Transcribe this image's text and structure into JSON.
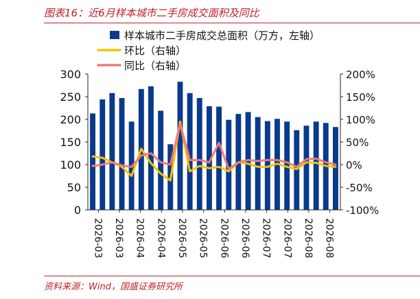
{
  "figure": {
    "title": "图表16：近6月样本城市二手房成交面积及同比",
    "source": "资料来源：Wind，国盛证券研究所"
  },
  "chart_data": {
    "type": "bar",
    "title": "",
    "xlabel": "",
    "ylabel": "",
    "legend": {
      "placement": "top-left",
      "entries": [
        {
          "label": "样本城市二手房成交总面积（万方，左轴）",
          "color": "#0a3a8c",
          "kind": "bar"
        },
        {
          "label": "环比（右轴）",
          "color": "#f5c400",
          "kind": "line"
        },
        {
          "label": "同比（右轴）",
          "color": "#ec7b7b",
          "kind": "line"
        }
      ]
    },
    "x_tick_labels": [
      "2026-03",
      "2026-03",
      "2026-04",
      "2026-04",
      "2026-05",
      "2026-05",
      "2026-06",
      "2026-06",
      "2026-07",
      "2026-07",
      "2026-08",
      "2026-08"
    ],
    "bar_values": [
      213,
      244,
      258,
      247,
      195,
      267,
      273,
      219,
      145,
      283,
      258,
      247,
      229,
      228,
      199,
      212,
      216,
      205,
      196,
      201,
      195,
      176,
      186,
      195,
      192,
      183
    ],
    "series": [
      {
        "name": "环比",
        "axis": "right",
        "color": "#f5c400",
        "values": [
          18,
          15,
          5,
          -5,
          -25,
          35,
          3,
          -20,
          -35,
          95,
          -15,
          -3,
          -8,
          -5,
          -15,
          5,
          2,
          -5,
          -5,
          2,
          -5,
          -10,
          5,
          4,
          -3,
          -5
        ]
      },
      {
        "name": "同比",
        "axis": "right",
        "color": "#ec7b7b",
        "values": [
          -3,
          0,
          5,
          -2,
          -5,
          20,
          25,
          5,
          0,
          90,
          10,
          10,
          5,
          48,
          -10,
          5,
          10,
          8,
          10,
          10,
          5,
          -5,
          12,
          13,
          5,
          0
        ]
      }
    ],
    "left_axis": {
      "min": 0,
      "max": 300,
      "ticks": [
        0,
        50,
        100,
        150,
        200,
        250,
        300
      ]
    },
    "right_axis": {
      "min": -100,
      "max": 200,
      "ticks": [
        "-100%",
        "-50%",
        "0%",
        "50%",
        "100%",
        "150%",
        "200%"
      ]
    },
    "grid": false
  }
}
